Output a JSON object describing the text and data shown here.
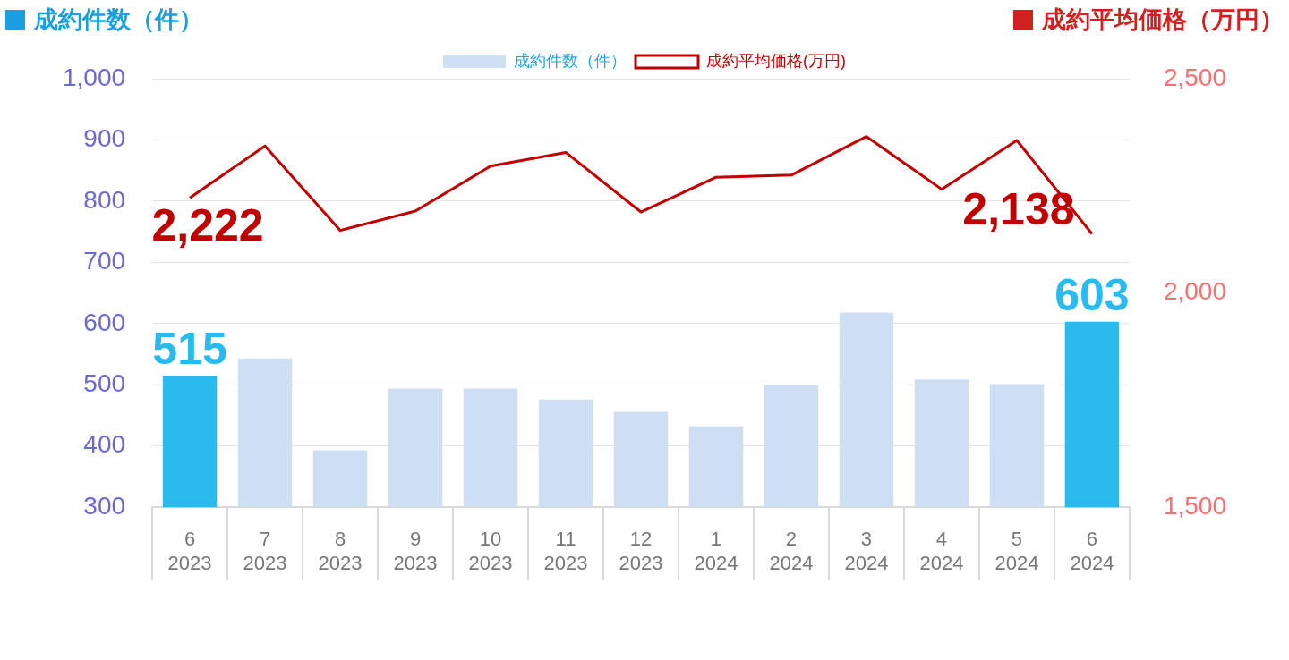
{
  "chart_data": {
    "type": "bar",
    "ylabel": "成約件数（件）",
    "y2label": "成約平均価格（万円）",
    "categories": [
      "6\n2023",
      "7\n2023",
      "8\n2023",
      "9\n2023",
      "10\n2023",
      "11\n2023",
      "12\n2023",
      "1\n2024",
      "2\n2024",
      "3\n2024",
      "4\n2024",
      "5\n2024",
      "6\n2024"
    ],
    "series": [
      {
        "name": "成約件数（件）",
        "type": "bar",
        "color": "#cfdff3",
        "colors": [
          "#29bbee",
          "#cfdff3",
          "#cfdff3",
          "#cfdff3",
          "#cfdff3",
          "#cfdff3",
          "#cfdff3",
          "#cfdff3",
          "#cfdff3",
          "#cfdff3",
          "#cfdff3",
          "#cfdff3",
          "#29bbee"
        ],
        "values": [
          515,
          543,
          393,
          494,
          494,
          476,
          456,
          432,
          500,
          618,
          509,
          501,
          603
        ],
        "value_labels": [
          "515",
          null,
          null,
          null,
          null,
          null,
          null,
          null,
          null,
          null,
          null,
          null,
          "603"
        ]
      },
      {
        "name": "成約平均価格(万円)",
        "type": "line",
        "axis": "y2",
        "color": "#c00000",
        "values": [
          2222,
          2343,
          2146,
          2191,
          2296,
          2328,
          2189,
          2270,
          2275,
          2365,
          2242,
          2356,
          2138
        ],
        "value_labels": [
          "2,222",
          null,
          null,
          null,
          null,
          null,
          null,
          null,
          null,
          null,
          null,
          null,
          "2,138"
        ]
      }
    ],
    "ylim": [
      300,
      1000
    ],
    "yticks": [
      {
        "value": 300,
        "label": "300"
      },
      {
        "value": 400,
        "label": "400"
      },
      {
        "value": 500,
        "label": "500"
      },
      {
        "value": 600,
        "label": "600"
      },
      {
        "value": 700,
        "label": "700"
      },
      {
        "value": 800,
        "label": "800"
      },
      {
        "value": 900,
        "label": "900"
      },
      {
        "value": 1000,
        "label": "1,000"
      }
    ],
    "y2lim": [
      1500,
      2500
    ],
    "y2ticks": [
      {
        "value": 1500,
        "label": "1,500"
      },
      {
        "value": 2000,
        "label": "2,000"
      },
      {
        "value": 2500,
        "label": "2,500"
      }
    ],
    "grid": "y",
    "legend": "top",
    "marker": "none",
    "line_style": "solid"
  }
}
